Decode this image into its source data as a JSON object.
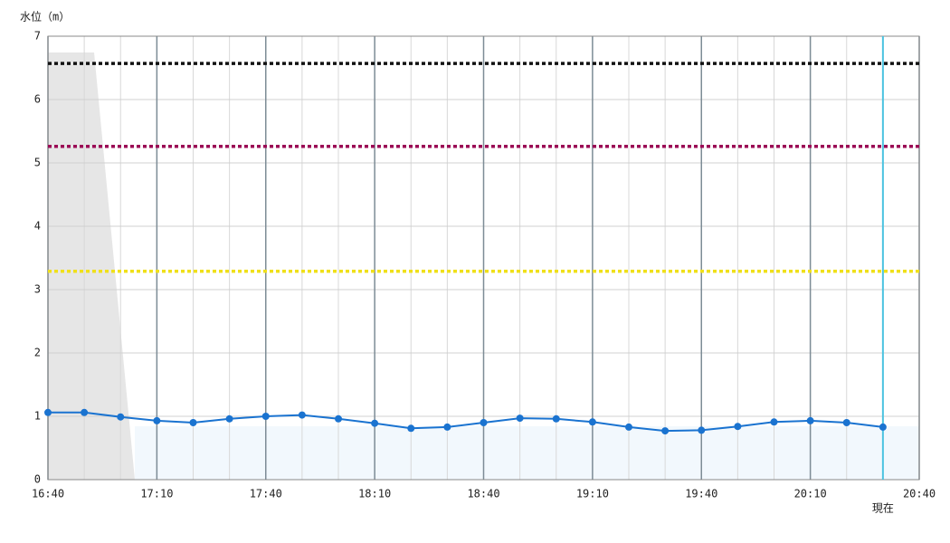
{
  "chart_data": {
    "type": "line",
    "y_label": "水位（m）",
    "x": [
      "16:40",
      "16:50",
      "17:00",
      "17:10",
      "17:20",
      "17:30",
      "17:40",
      "17:50",
      "18:00",
      "18:10",
      "18:20",
      "18:30",
      "18:40",
      "18:50",
      "19:00",
      "19:10",
      "19:20",
      "19:30",
      "19:40",
      "19:50",
      "20:00",
      "20:10",
      "20:20",
      "20:30"
    ],
    "series": [
      {
        "color": "#1a73d0",
        "values": [
          1.06,
          1.06,
          0.99,
          0.93,
          0.9,
          0.96,
          1.0,
          1.02,
          0.96,
          0.89,
          0.81,
          0.83,
          0.9,
          0.97,
          0.96,
          0.91,
          0.83,
          0.77,
          0.78,
          0.84,
          0.91,
          0.93,
          0.9,
          0.83
        ]
      }
    ],
    "thresholds": [
      {
        "value": 6.57,
        "color": "#111111"
      },
      {
        "value": 5.26,
        "color": "#9b0a55"
      },
      {
        "value": 3.29,
        "color": "#f0e01a"
      }
    ],
    "now": {
      "label": "現在",
      "x": "20:30",
      "color": "#4cc3e0"
    },
    "xlim": [
      "16:40",
      "20:40"
    ],
    "xticks": [
      "16:40",
      "17:10",
      "17:40",
      "18:10",
      "18:40",
      "19:10",
      "19:40",
      "20:10",
      "20:40"
    ],
    "ylim": [
      0,
      7
    ],
    "yticks": [
      0,
      1,
      2,
      3,
      4,
      5,
      6,
      7
    ],
    "grid": true
  }
}
